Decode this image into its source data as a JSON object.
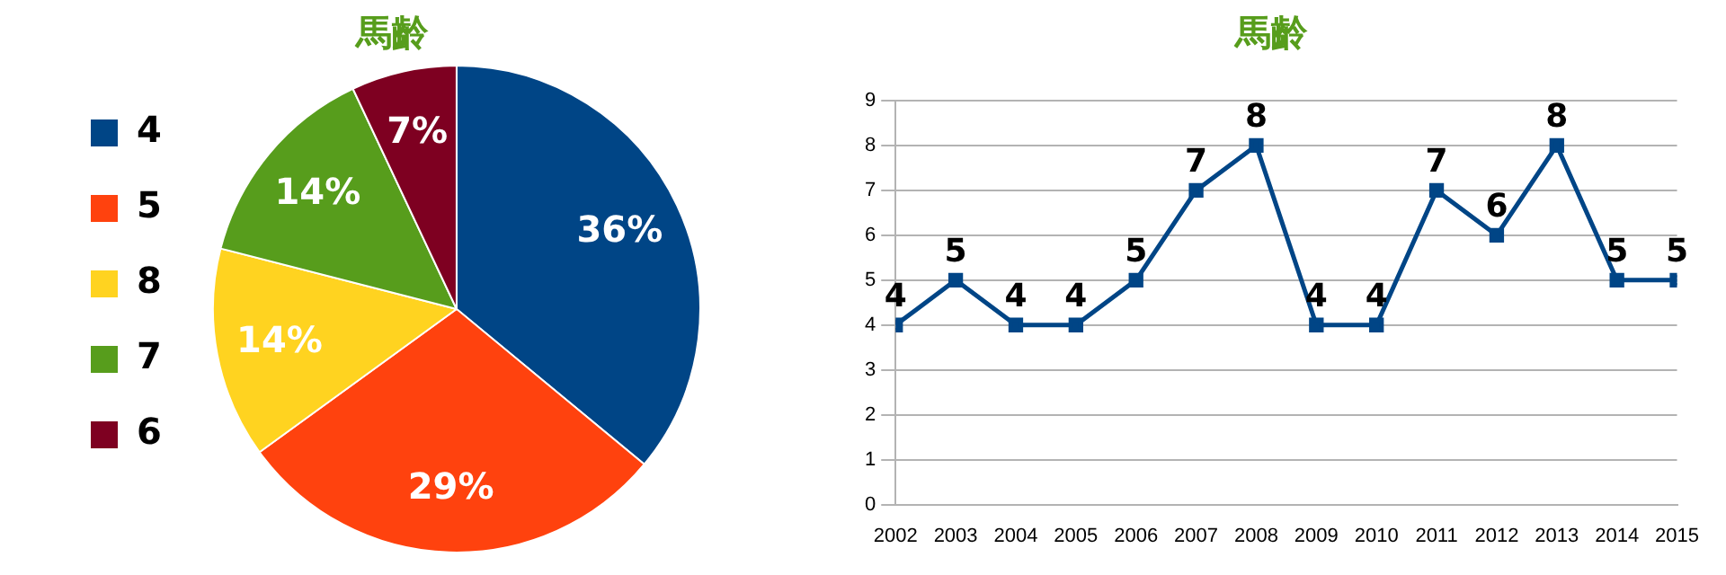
{
  "chart_data": [
    {
      "type": "pie",
      "title": "馬齡",
      "categories": [
        "4",
        "5",
        "8",
        "7",
        "6"
      ],
      "values": [
        36,
        29,
        14,
        14,
        7
      ],
      "colors": [
        "#004586",
        "#ff420e",
        "#ffd320",
        "#579d1c",
        "#7e0021"
      ],
      "value_labels": [
        "36%",
        "29%",
        "14%",
        "14%",
        "7%"
      ],
      "legend": "left"
    },
    {
      "type": "line",
      "title": "馬齡",
      "x": [
        2002,
        2003,
        2004,
        2005,
        2006,
        2007,
        2008,
        2009,
        2010,
        2011,
        2012,
        2013,
        2014,
        2015
      ],
      "series": [
        {
          "color": "#004586",
          "values": [
            4,
            5,
            4,
            4,
            5,
            7,
            8,
            4,
            4,
            7,
            6,
            8,
            5,
            5
          ]
        }
      ],
      "xlim": [
        2002,
        2015
      ],
      "xticks": [
        2002,
        2003,
        2004,
        2005,
        2006,
        2007,
        2008,
        2009,
        2010,
        2011,
        2012,
        2013,
        2014,
        2015
      ],
      "ylim": [
        0,
        9
      ],
      "yticks": [
        0,
        1,
        2,
        3,
        4,
        5,
        6,
        7,
        8,
        9
      ],
      "grid": "y",
      "marker": "square",
      "line_style": "solid",
      "data_labels": true,
      "legend": false
    }
  ]
}
